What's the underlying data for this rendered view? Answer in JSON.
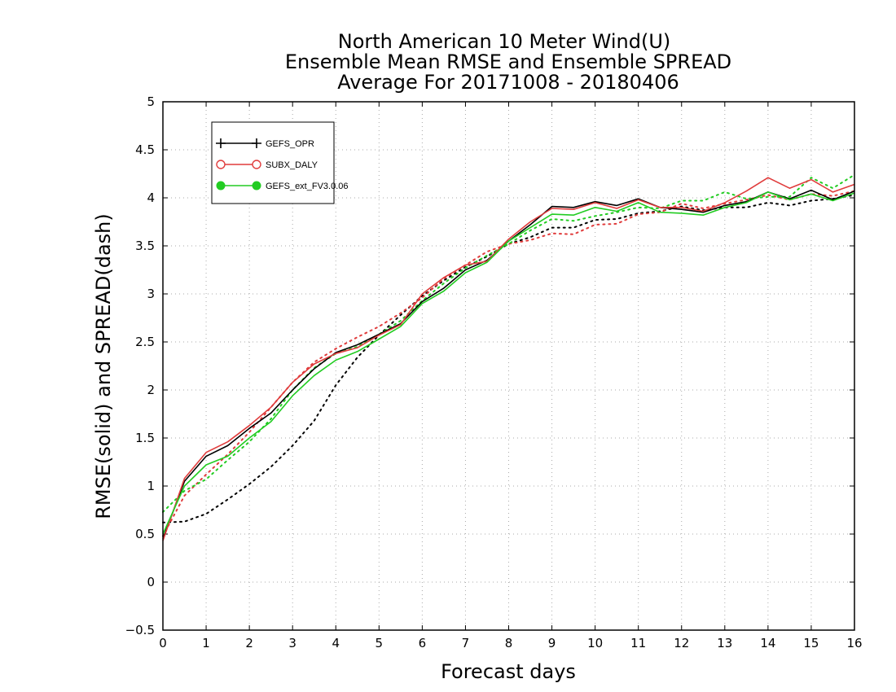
{
  "chart_data": {
    "type": "line",
    "title": [
      "North American 10 Meter Wind(U)",
      "Ensemble Mean RMSE and Ensemble SPREAD",
      "Average For 20171008 - 20180406"
    ],
    "xlabel": "Forecast days",
    "ylabel": "RMSE(solid) and SPREAD(dash)",
    "xlim": [
      0,
      16
    ],
    "ylim": [
      -0.5,
      5
    ],
    "xticks": [
      0,
      1,
      2,
      3,
      4,
      5,
      6,
      7,
      8,
      9,
      10,
      11,
      12,
      13,
      14,
      15,
      16
    ],
    "yticks": [
      -0.5,
      0,
      0.5,
      1,
      1.5,
      2,
      2.5,
      3,
      3.5,
      4,
      4.5,
      5
    ],
    "grid": true,
    "legend_position": "top-left",
    "x": [
      0,
      0.5,
      1,
      1.5,
      2,
      2.5,
      3,
      3.5,
      4,
      4.5,
      5,
      5.5,
      6,
      6.5,
      7,
      7.5,
      8,
      8.5,
      9,
      9.5,
      10,
      10.5,
      11,
      11.5,
      12,
      12.5,
      13,
      13.5,
      14,
      14.5,
      15,
      15.5,
      16
    ],
    "series": [
      {
        "name": "GEFS_OPR",
        "color": "#000000",
        "marker": "plus",
        "rmse": [
          0.45,
          1.05,
          1.31,
          1.42,
          1.6,
          1.76,
          2.0,
          2.22,
          2.39,
          2.47,
          2.58,
          2.69,
          2.92,
          3.06,
          3.25,
          3.35,
          3.55,
          3.72,
          3.91,
          3.9,
          3.96,
          3.92,
          3.99,
          3.9,
          3.88,
          3.85,
          3.92,
          3.96,
          4.06,
          3.99,
          4.08,
          3.98,
          4.07
        ],
        "spread": [
          0.62,
          0.63,
          0.71,
          0.86,
          1.02,
          1.2,
          1.42,
          1.68,
          2.05,
          2.34,
          2.57,
          2.78,
          2.98,
          3.14,
          3.28,
          3.39,
          3.52,
          3.59,
          3.69,
          3.69,
          3.77,
          3.78,
          3.84,
          3.86,
          3.91,
          3.87,
          3.9,
          3.9,
          3.95,
          3.92,
          3.97,
          3.99,
          4.03
        ]
      },
      {
        "name": "SUBX_DALY",
        "color": "#e03c3c",
        "marker": "circle-open",
        "rmse": [
          0.43,
          1.08,
          1.35,
          1.46,
          1.63,
          1.82,
          2.08,
          2.27,
          2.38,
          2.44,
          2.57,
          2.68,
          3.0,
          3.17,
          3.3,
          3.34,
          3.57,
          3.75,
          3.89,
          3.88,
          3.95,
          3.89,
          3.98,
          3.9,
          3.9,
          3.86,
          3.95,
          4.07,
          4.21,
          4.1,
          4.19,
          4.06,
          4.14
        ],
        "spread": [
          0.48,
          0.9,
          1.12,
          1.33,
          1.56,
          1.82,
          2.08,
          2.29,
          2.43,
          2.55,
          2.66,
          2.8,
          2.96,
          3.16,
          3.3,
          3.44,
          3.52,
          3.56,
          3.63,
          3.62,
          3.72,
          3.73,
          3.83,
          3.85,
          3.94,
          3.89,
          3.94,
          3.98,
          4.03,
          3.98,
          4.04,
          4.02,
          4.07
        ]
      },
      {
        "name": "GEFS_ext_FV3.0.06",
        "color": "#22cc22",
        "marker": "circle-filled",
        "rmse": [
          0.5,
          1.0,
          1.22,
          1.31,
          1.5,
          1.67,
          1.94,
          2.15,
          2.31,
          2.4,
          2.53,
          2.66,
          2.9,
          3.03,
          3.22,
          3.33,
          3.55,
          3.69,
          3.83,
          3.82,
          3.9,
          3.86,
          3.95,
          3.85,
          3.84,
          3.82,
          3.9,
          3.95,
          4.06,
          3.98,
          4.04,
          3.97,
          4.05
        ],
        "spread": [
          0.73,
          0.95,
          1.07,
          1.27,
          1.46,
          1.7,
          2.0,
          2.23,
          2.38,
          2.45,
          2.58,
          2.72,
          2.93,
          3.11,
          3.27,
          3.4,
          3.52,
          3.66,
          3.78,
          3.76,
          3.81,
          3.85,
          3.9,
          3.89,
          3.97,
          3.97,
          4.06,
          3.99,
          4.01,
          4.01,
          4.21,
          4.1,
          4.24
        ]
      }
    ]
  }
}
